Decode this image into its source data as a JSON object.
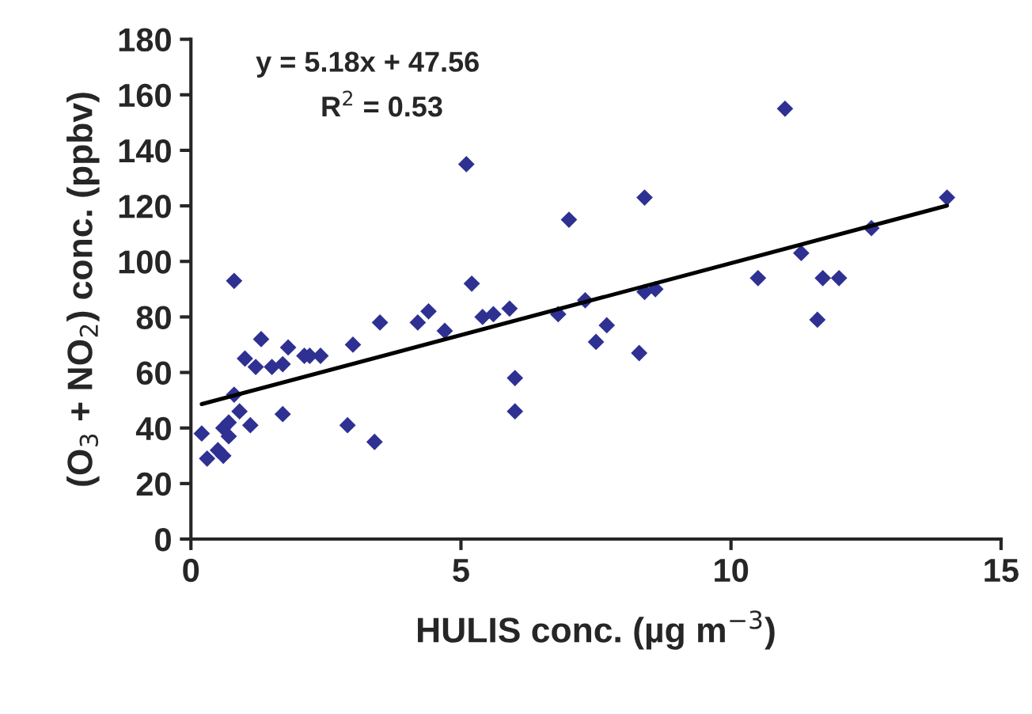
{
  "chart_data": {
    "type": "scatter",
    "xlabel": "HULIS conc. (µg m$^{−3}$)",
    "ylabel": "(O$_{3}$ + NO$_{2}$) conc. (ppbv)",
    "annotations": [
      "y = 5.18x + 47.56",
      "R$^{2}$ = 0.53"
    ],
    "xlim": [
      0,
      15
    ],
    "xticks": [
      0,
      5,
      10,
      15
    ],
    "ylim": [
      0,
      180
    ],
    "yticks": [
      0,
      20,
      40,
      60,
      80,
      100,
      120,
      140,
      160,
      180
    ],
    "grid": false,
    "legend": false,
    "series": [
      {
        "color": "#2e3192",
        "marker": "diamond",
        "x": [
          0.2,
          0.3,
          0.5,
          0.6,
          0.6,
          0.7,
          0.7,
          0.8,
          0.8,
          0.9,
          1.0,
          1.1,
          1.2,
          1.3,
          1.5,
          1.7,
          1.7,
          1.8,
          2.1,
          2.2,
          2.4,
          2.9,
          3.0,
          3.4,
          3.5,
          4.2,
          4.4,
          4.7,
          5.1,
          5.2,
          5.4,
          5.6,
          5.9,
          6.0,
          6.0,
          6.8,
          7.0,
          7.3,
          7.5,
          7.7,
          8.3,
          8.4,
          8.4,
          8.6,
          10.5,
          11.0,
          11.3,
          11.6,
          11.7,
          12.0,
          12.6,
          14.0
        ],
        "values": [
          38,
          29,
          32,
          30,
          40,
          42,
          37,
          93,
          52,
          46,
          65,
          41,
          62,
          72,
          62,
          63,
          45,
          69,
          66,
          66,
          66,
          41,
          70,
          35,
          78,
          78,
          82,
          75,
          135,
          92,
          80,
          81,
          83,
          58,
          46,
          81,
          115,
          86,
          71,
          77,
          67,
          123,
          89,
          90,
          94,
          155,
          103,
          79,
          94,
          94,
          112,
          123
        ]
      },
      {
        "type": "line",
        "color": "#000000",
        "marker": "none",
        "line_style": "solid",
        "x": [
          0.2,
          14.0
        ],
        "values": [
          48.6,
          120.1
        ]
      }
    ]
  }
}
